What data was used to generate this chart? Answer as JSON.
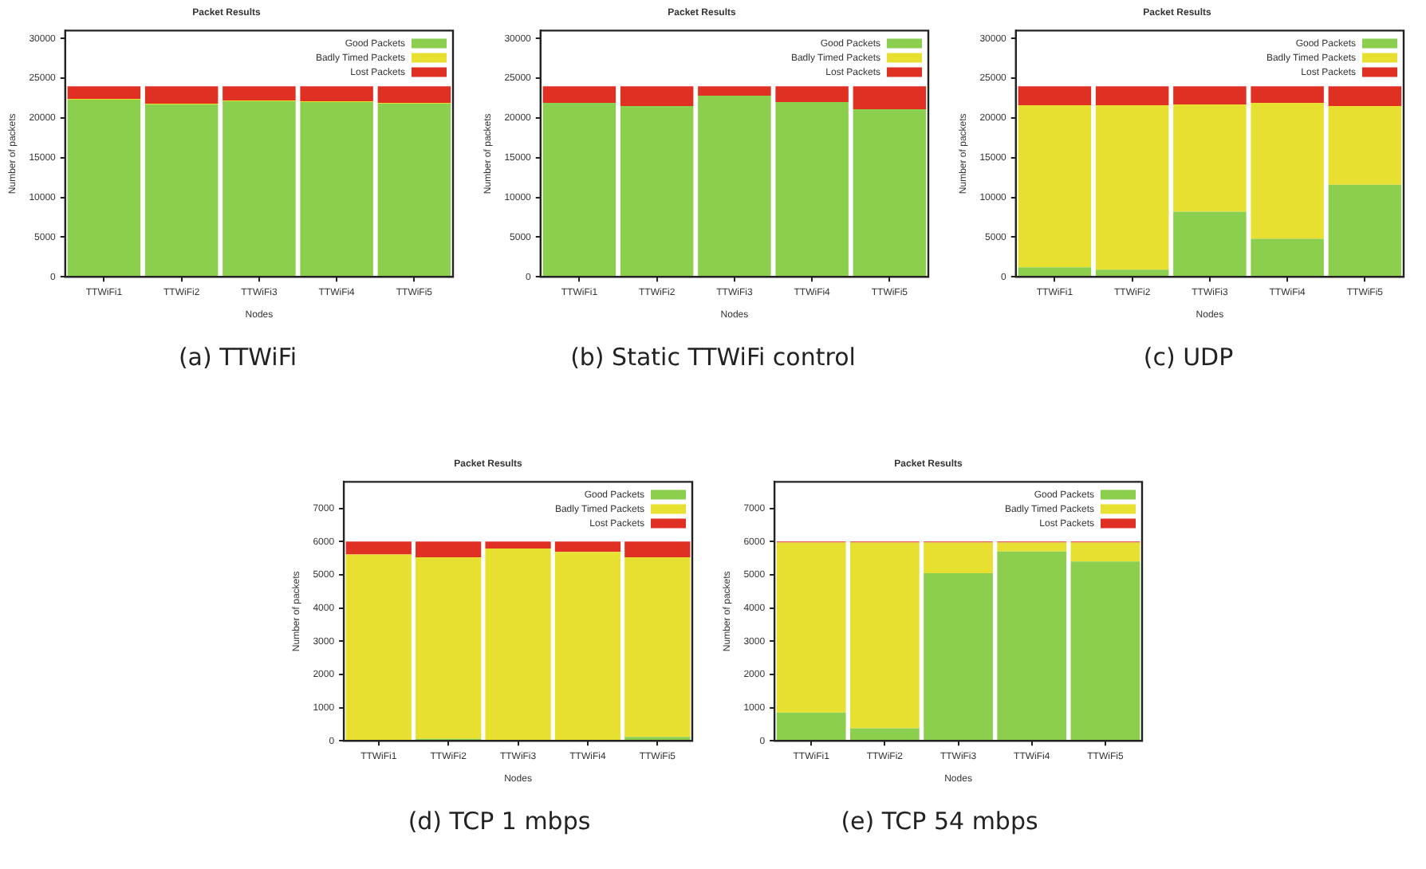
{
  "chart_data": [
    {
      "type": "bar",
      "stacked": true,
      "title": "Packet Results",
      "xlabel": "Nodes",
      "ylabel": "Number of packets",
      "categories": [
        "TTWiFi1",
        "TTWiFi2",
        "TTWiFi3",
        "TTWiFi4",
        "TTWiFi5"
      ],
      "series": [
        {
          "name": "Good Packets",
          "color": "#8ccf4e",
          "values": [
            22300,
            21700,
            22100,
            22000,
            21800
          ]
        },
        {
          "name": "Badly Timed Packets",
          "color": "#e8e030",
          "values": [
            100,
            100,
            100,
            100,
            100
          ]
        },
        {
          "name": "Lost Packets",
          "color": "#e03024",
          "values": [
            1600,
            2200,
            1800,
            1900,
            2100
          ]
        }
      ],
      "ylim": [
        0,
        31000
      ],
      "yticks": [
        0,
        5000,
        10000,
        15000,
        20000,
        25000,
        30000
      ],
      "legend": "top right",
      "annotations": [
        "(a) TTWiFi"
      ]
    },
    {
      "type": "bar",
      "stacked": true,
      "title": "Packet Results",
      "xlabel": "Nodes",
      "ylabel": "Number of packets",
      "categories": [
        "TTWiFi1",
        "TTWiFi2",
        "TTWiFi3",
        "TTWiFi4",
        "TTWiFi5"
      ],
      "series": [
        {
          "name": "Good Packets",
          "color": "#8ccf4e",
          "values": [
            21900,
            21500,
            22800,
            22000,
            21100
          ]
        },
        {
          "name": "Badly Timed Packets",
          "color": "#e8e030",
          "values": [
            0,
            0,
            0,
            0,
            0
          ]
        },
        {
          "name": "Lost Packets",
          "color": "#e03024",
          "values": [
            2100,
            2500,
            1200,
            2000,
            2900
          ]
        }
      ],
      "ylim": [
        0,
        31000
      ],
      "yticks": [
        0,
        5000,
        10000,
        15000,
        20000,
        25000,
        30000
      ],
      "legend": "top right",
      "annotations": [
        "(b) Static TTWiFi control"
      ]
    },
    {
      "type": "bar",
      "stacked": true,
      "title": "Packet Results",
      "xlabel": "Nodes",
      "ylabel": "Number of packets",
      "categories": [
        "TTWiFi1",
        "TTWiFi2",
        "TTWiFi3",
        "TTWiFi4",
        "TTWiFi5"
      ],
      "series": [
        {
          "name": "Good Packets",
          "color": "#8ccf4e",
          "values": [
            1200,
            900,
            8200,
            4800,
            11600
          ]
        },
        {
          "name": "Badly Timed Packets",
          "color": "#e8e030",
          "values": [
            20400,
            20700,
            13500,
            17100,
            9900
          ]
        },
        {
          "name": "Lost Packets",
          "color": "#e03024",
          "values": [
            2400,
            2400,
            2300,
            2100,
            2500
          ]
        }
      ],
      "ylim": [
        0,
        31000
      ],
      "yticks": [
        0,
        5000,
        10000,
        15000,
        20000,
        25000,
        30000
      ],
      "legend": "top right",
      "annotations": [
        "(c) UDP"
      ]
    },
    {
      "type": "bar",
      "stacked": true,
      "title": "Packet Results",
      "xlabel": "Nodes",
      "ylabel": "Number of packets",
      "categories": [
        "TTWiFi1",
        "TTWiFi2",
        "TTWiFi3",
        "TTWiFi4",
        "TTWiFi5"
      ],
      "series": [
        {
          "name": "Good Packets",
          "color": "#8ccf4e",
          "values": [
            20,
            60,
            20,
            20,
            120
          ]
        },
        {
          "name": "Badly Timed Packets",
          "color": "#e8e030",
          "values": [
            5590,
            5470,
            5770,
            5670,
            5410
          ]
        },
        {
          "name": "Lost Packets",
          "color": "#e03024",
          "values": [
            390,
            470,
            210,
            310,
            470
          ]
        }
      ],
      "ylim": [
        0,
        7800
      ],
      "yticks": [
        0,
        1000,
        2000,
        3000,
        4000,
        5000,
        6000,
        7000
      ],
      "legend": "top right",
      "annotations": [
        "(d) TCP 1 mbps"
      ]
    },
    {
      "type": "bar",
      "stacked": true,
      "title": "Packet Results",
      "xlabel": "Nodes",
      "ylabel": "Number of packets",
      "categories": [
        "TTWiFi1",
        "TTWiFi2",
        "TTWiFi3",
        "TTWiFi4",
        "TTWiFi5"
      ],
      "series": [
        {
          "name": "Good Packets",
          "color": "#8ccf4e",
          "values": [
            850,
            380,
            5050,
            5700,
            5400
          ]
        },
        {
          "name": "Badly Timed Packets",
          "color": "#e8e030",
          "values": [
            5120,
            5590,
            920,
            270,
            570
          ]
        },
        {
          "name": "Lost Packets",
          "color": "#e03024",
          "values": [
            30,
            30,
            30,
            30,
            30
          ]
        }
      ],
      "ylim": [
        0,
        7800
      ],
      "yticks": [
        0,
        1000,
        2000,
        3000,
        4000,
        5000,
        6000,
        7000
      ],
      "legend": "top right",
      "annotations": [
        "(e) TCP 54 mbps"
      ]
    }
  ]
}
